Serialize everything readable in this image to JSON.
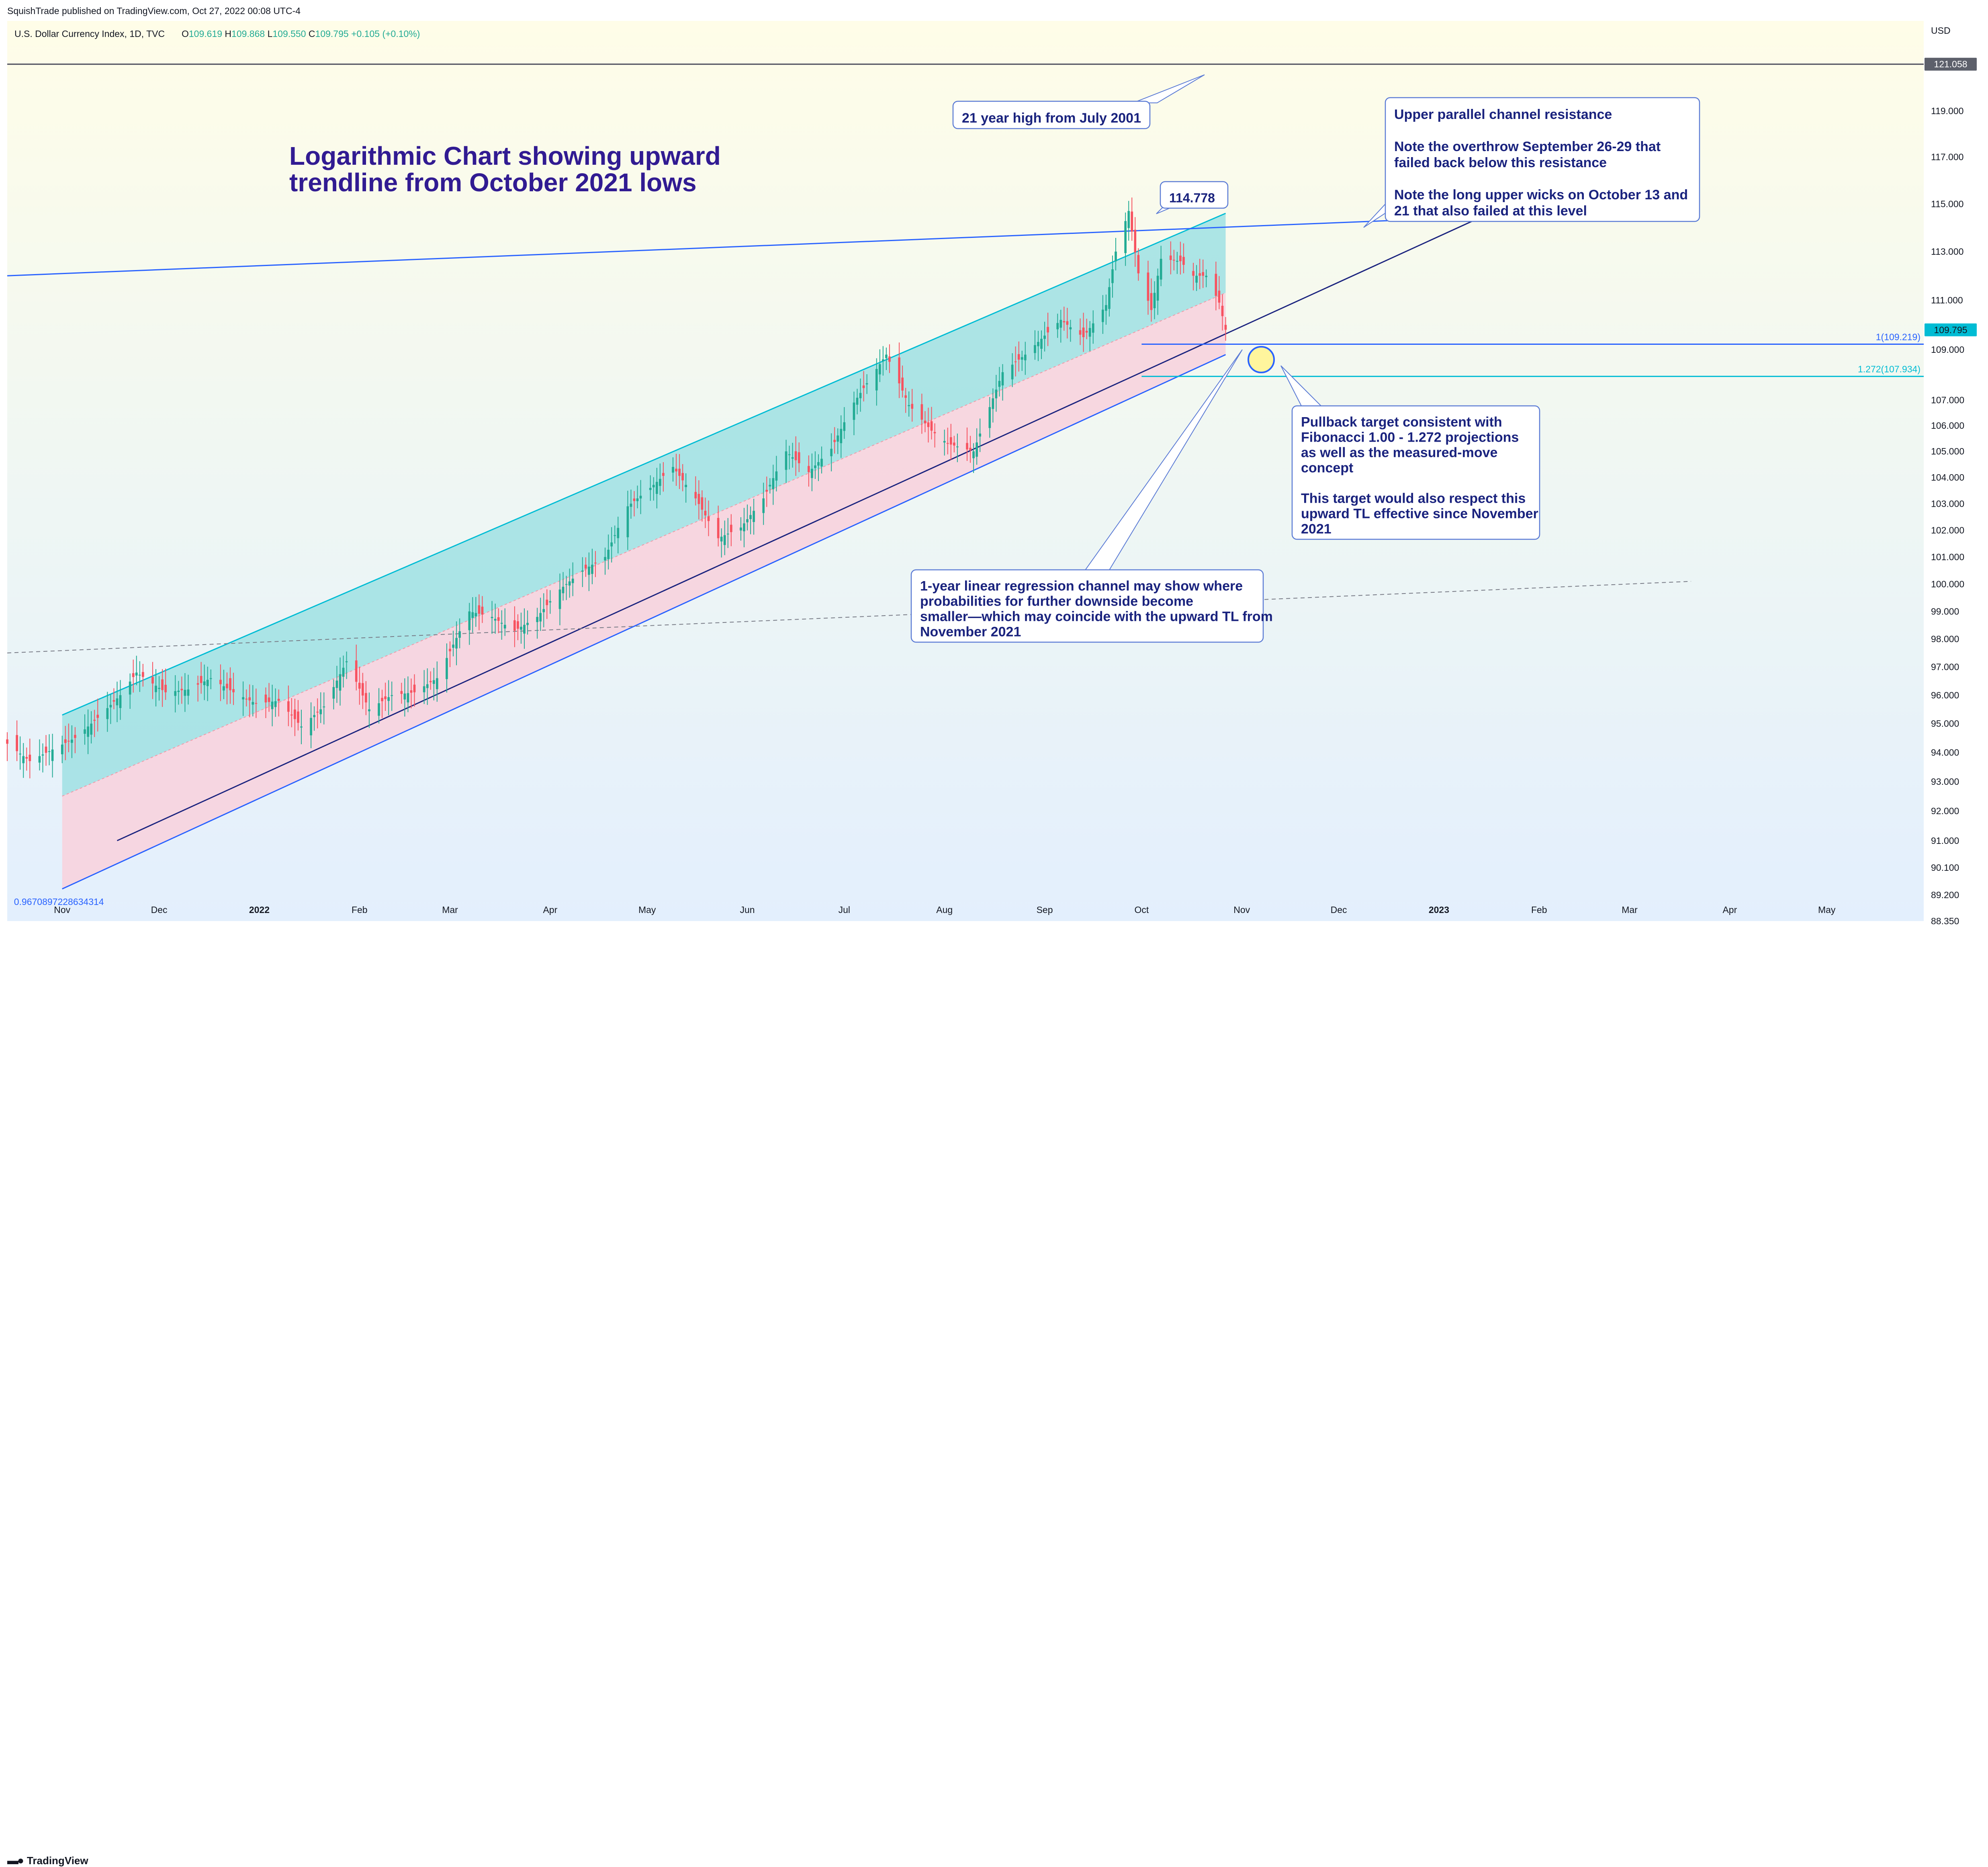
{
  "header": {
    "published": "SquishTrade published on TradingView.com, Oct 27, 2022 00:08 UTC-4"
  },
  "footer": {
    "brand": "TradingView",
    "brand_icon": "tradingview-logo-icon"
  },
  "chart_data": {
    "type": "candlestick",
    "symbol_line": "U.S. Dollar Currency Index, 1D, TVC",
    "ohlc": {
      "open_label": "O",
      "open": "109.619",
      "high_label": "H",
      "high": "109.868",
      "low_label": "L",
      "low": "109.550",
      "close_label": "C",
      "close": "109.795",
      "change": "+0.105 (+0.10%)"
    },
    "currency": "USD",
    "scale": "log",
    "ylim": [
      88.35,
      123.0
    ],
    "y_ticks": [
      "121.058",
      "119.000",
      "117.000",
      "115.000",
      "113.000",
      "111.000",
      "109.000",
      "107.000",
      "106.000",
      "105.000",
      "104.000",
      "103.000",
      "102.000",
      "101.000",
      "100.000",
      "99.000",
      "98.000",
      "97.000",
      "96.000",
      "95.000",
      "94.000",
      "93.000",
      "92.000",
      "91.000",
      "90.100",
      "89.200",
      "88.350"
    ],
    "last_price_label": "109.795",
    "high_level_label": "121.058",
    "x_range": [
      "2021-10-15",
      "2023-05-31"
    ],
    "x_ticks": [
      {
        "label": "Nov",
        "date": "2021-11-01",
        "bold": false
      },
      {
        "label": "Dec",
        "date": "2021-12-01",
        "bold": false
      },
      {
        "label": "2022",
        "date": "2022-01-01",
        "bold": true
      },
      {
        "label": "Feb",
        "date": "2022-02-01",
        "bold": false
      },
      {
        "label": "Mar",
        "date": "2022-03-01",
        "bold": false
      },
      {
        "label": "Apr",
        "date": "2022-04-01",
        "bold": false
      },
      {
        "label": "May",
        "date": "2022-05-01",
        "bold": false
      },
      {
        "label": "Jun",
        "date": "2022-06-01",
        "bold": false
      },
      {
        "label": "Jul",
        "date": "2022-07-01",
        "bold": false
      },
      {
        "label": "Aug",
        "date": "2022-08-01",
        "bold": false
      },
      {
        "label": "Sep",
        "date": "2022-09-01",
        "bold": false
      },
      {
        "label": "Oct",
        "date": "2022-10-01",
        "bold": false
      },
      {
        "label": "Nov",
        "date": "2022-11-01",
        "bold": false
      },
      {
        "label": "Dec",
        "date": "2022-12-01",
        "bold": false
      },
      {
        "label": "2023",
        "date": "2023-01-01",
        "bold": true
      },
      {
        "label": "Feb",
        "date": "2023-02-01",
        "bold": false
      },
      {
        "label": "Mar",
        "date": "2023-03-01",
        "bold": false
      },
      {
        "label": "Apr",
        "date": "2023-04-01",
        "bold": false
      },
      {
        "label": "May",
        "date": "2023-05-01",
        "bold": false
      }
    ],
    "price_path": [
      [
        "2021-10-15",
        94.3
      ],
      [
        "2021-10-22",
        93.7
      ],
      [
        "2021-10-29",
        94.1
      ],
      [
        "2021-11-05",
        94.5
      ],
      [
        "2021-11-12",
        95.2
      ],
      [
        "2021-11-19",
        96.0
      ],
      [
        "2021-11-24",
        96.8
      ],
      [
        "2021-12-03",
        96.1
      ],
      [
        "2021-12-10",
        96.2
      ],
      [
        "2021-12-17",
        96.6
      ],
      [
        "2021-12-24",
        96.1
      ],
      [
        "2021-12-31",
        95.7
      ],
      [
        "2022-01-07",
        95.8
      ],
      [
        "2022-01-14",
        94.9
      ],
      [
        "2022-01-21",
        95.6
      ],
      [
        "2022-01-28",
        97.2
      ],
      [
        "2022-02-04",
        95.5
      ],
      [
        "2022-02-11",
        96.0
      ],
      [
        "2022-02-18",
        96.1
      ],
      [
        "2022-02-25",
        96.6
      ],
      [
        "2022-03-07",
        99.0
      ],
      [
        "2022-03-14",
        98.8
      ],
      [
        "2022-03-21",
        98.3
      ],
      [
        "2022-03-28",
        98.8
      ],
      [
        "2022-04-04",
        99.8
      ],
      [
        "2022-04-11",
        100.5
      ],
      [
        "2022-04-18",
        101.0
      ],
      [
        "2022-04-25",
        102.9
      ],
      [
        "2022-05-02",
        103.6
      ],
      [
        "2022-05-09",
        104.4
      ],
      [
        "2022-05-16",
        103.2
      ],
      [
        "2022-05-23",
        101.7
      ],
      [
        "2022-05-30",
        102.1
      ],
      [
        "2022-06-06",
        103.2
      ],
      [
        "2022-06-13",
        105.0
      ],
      [
        "2022-06-20",
        104.2
      ],
      [
        "2022-06-27",
        105.1
      ],
      [
        "2022-07-04",
        106.9
      ],
      [
        "2022-07-14",
        108.8
      ],
      [
        "2022-07-21",
        106.8
      ],
      [
        "2022-07-28",
        105.8
      ],
      [
        "2022-08-02",
        105.3
      ],
      [
        "2022-08-10",
        105.0
      ],
      [
        "2022-08-19",
        108.1
      ],
      [
        "2022-08-26",
        108.8
      ],
      [
        "2022-09-06",
        110.2
      ],
      [
        "2022-09-13",
        109.5
      ],
      [
        "2022-09-20",
        110.8
      ],
      [
        "2022-09-23",
        113.0
      ],
      [
        "2022-09-27",
        114.7
      ],
      [
        "2022-09-30",
        112.1
      ],
      [
        "2022-10-04",
        110.6
      ],
      [
        "2022-10-07",
        112.7
      ],
      [
        "2022-10-13",
        112.6
      ],
      [
        "2022-10-17",
        112.0
      ],
      [
        "2022-10-21",
        112.0
      ],
      [
        "2022-10-25",
        110.9
      ],
      [
        "2022-10-27",
        109.8
      ]
    ]
  },
  "annotations": {
    "title_line1": "Logarithmic Chart showing upward",
    "title_line2": "trendline from October 2021 lows",
    "high_callout": "21 year high from July 2001",
    "peak_label": "114.778",
    "resistance_note": [
      "Upper parallel channel resistance",
      "",
      "Note the overthrow September 26-29 that",
      "failed back below this resistance",
      "",
      "Note the long upper wicks on October 13 and",
      "21 that also failed at this level"
    ],
    "pullback_note": [
      "Pullback target consistent with",
      "Fibonacci 1.00 - 1.272 projections",
      "as well as the measured-move",
      "concept",
      "",
      "This target would also respect this",
      "upward TL effective since November",
      "2021"
    ],
    "regression_note": [
      "1-year linear regression channel may show where",
      "probabilities for further downside become",
      "smaller—which may coincide with the upward TL from",
      "November 2021"
    ],
    "fib_1": "1(109.219)",
    "fib_1272": "1.272(107.934)",
    "fib_1_value": 109.219,
    "fib_1272_value": 107.934,
    "regression_coef": "0.9670897228634314"
  },
  "colors": {
    "bull": "#26a69a",
    "bear": "#ef5350",
    "bull_candle": "#22ab94",
    "bear_candle": "#f7525f",
    "channel_upper_fill": "#9fe0e3",
    "channel_lower_fill": "#f7d3de",
    "trendline": "#2962ff",
    "text_blue": "#1a237e",
    "fib_blue": "#2962ff",
    "fib_cyan": "#00bcd4",
    "title_color": "#311b92"
  }
}
